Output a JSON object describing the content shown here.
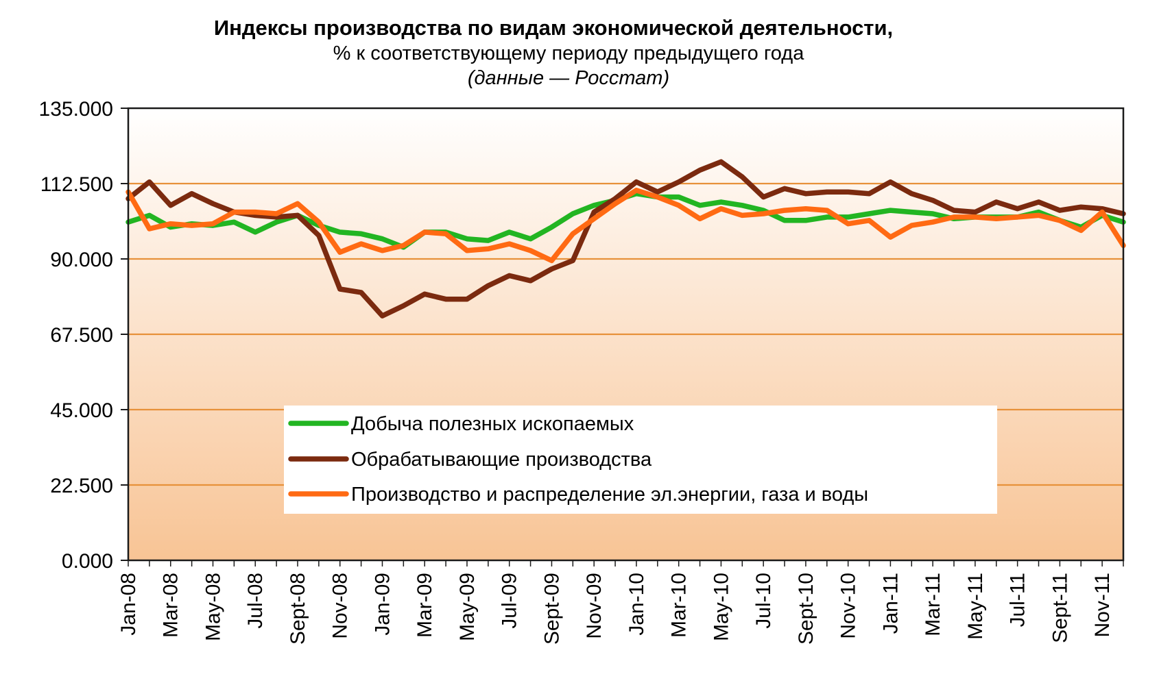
{
  "chart_data": {
    "type": "line",
    "title": "Индексы производства по видам экономической деятельности,",
    "subtitle": "% к соответствующему периоду предыдущего года",
    "source": "(данные — Росстат)",
    "xlabel": "",
    "ylabel": "",
    "ylim": [
      0,
      135
    ],
    "yticks": [
      "0.000",
      "22.500",
      "45.000",
      "67.500",
      "90.000",
      "112.500",
      "135.000"
    ],
    "grid": true,
    "legend_position": "bottom-center",
    "x_tick_labels": [
      "Jan-08",
      "Mar-08",
      "May-08",
      "Jul-08",
      "Sept-08",
      "Nov-08",
      "Jan-09",
      "Mar-09",
      "May-09",
      "Jul-09",
      "Sept-09",
      "Nov-09",
      "Jan-10",
      "Mar-10",
      "May-10",
      "Jul-10",
      "Sept-10",
      "Nov-10",
      "Jan-11",
      "Mar-11",
      "May-11",
      "Jul-11",
      "Sept-11",
      "Nov-11"
    ],
    "x": [
      "Jan-08",
      "Feb-08",
      "Mar-08",
      "Apr-08",
      "May-08",
      "Jun-08",
      "Jul-08",
      "Aug-08",
      "Sept-08",
      "Oct-08",
      "Nov-08",
      "Dec-08",
      "Jan-09",
      "Feb-09",
      "Mar-09",
      "Apr-09",
      "May-09",
      "Jun-09",
      "Jul-09",
      "Aug-09",
      "Sept-09",
      "Oct-09",
      "Nov-09",
      "Dec-09",
      "Jan-10",
      "Feb-10",
      "Mar-10",
      "Apr-10",
      "May-10",
      "Jun-10",
      "Jul-10",
      "Aug-10",
      "Sept-10",
      "Oct-10",
      "Nov-10",
      "Dec-10",
      "Jan-11",
      "Feb-11",
      "Mar-11",
      "Apr-11",
      "May-11",
      "Jun-11",
      "Jul-11",
      "Aug-11",
      "Sept-11",
      "Oct-11",
      "Nov-11",
      "Dec-11"
    ],
    "series": [
      {
        "name": "Добыча полезных ископаемых",
        "color": "#22b522",
        "values": [
          101,
          103,
          99.5,
          100.5,
          100,
          101,
          98,
          101,
          103,
          100,
          98,
          97.5,
          96,
          93.5,
          98,
          98,
          96,
          95.5,
          98,
          96,
          99.5,
          103.5,
          106,
          107.5,
          109.5,
          108.5,
          108.5,
          106,
          107,
          106,
          104.5,
          101.5,
          101.5,
          102.5,
          102.5,
          103.5,
          104.5,
          104,
          103.5,
          102,
          102.5,
          102.5,
          102.5,
          104,
          101.5,
          99.5,
          103,
          101
        ]
      },
      {
        "name": "Обрабатывающие производства",
        "color": "#7b2a0f",
        "values": [
          108,
          113,
          106,
          109.5,
          106.5,
          104,
          103,
          102.5,
          103,
          97,
          81,
          80,
          73,
          76,
          79.5,
          78,
          78,
          82,
          85,
          83.5,
          87,
          89.5,
          104,
          108,
          113,
          110,
          113,
          116.5,
          119,
          114.5,
          108.5,
          111,
          109.5,
          110,
          110,
          109.5,
          113,
          109.5,
          107.5,
          104.5,
          104,
          107,
          105,
          107,
          104.5,
          105.5,
          105,
          103.5
        ]
      },
      {
        "name": "Производство и распределение эл.энергии, газа и воды",
        "color": "#ff6a13",
        "values": [
          110,
          99,
          100.5,
          100,
          100.5,
          104,
          104,
          103.5,
          106.5,
          101,
          92,
          94.5,
          92.5,
          94,
          98,
          97.5,
          92.5,
          93,
          94.5,
          92.5,
          89.5,
          97.5,
          102,
          106.5,
          110.5,
          108.5,
          106,
          102,
          105,
          103,
          103.5,
          104.5,
          105,
          104.5,
          100.5,
          101.5,
          96.5,
          100,
          101,
          102.5,
          102.5,
          102,
          102.5,
          103,
          101.5,
          98.5,
          104,
          94
        ]
      }
    ]
  }
}
